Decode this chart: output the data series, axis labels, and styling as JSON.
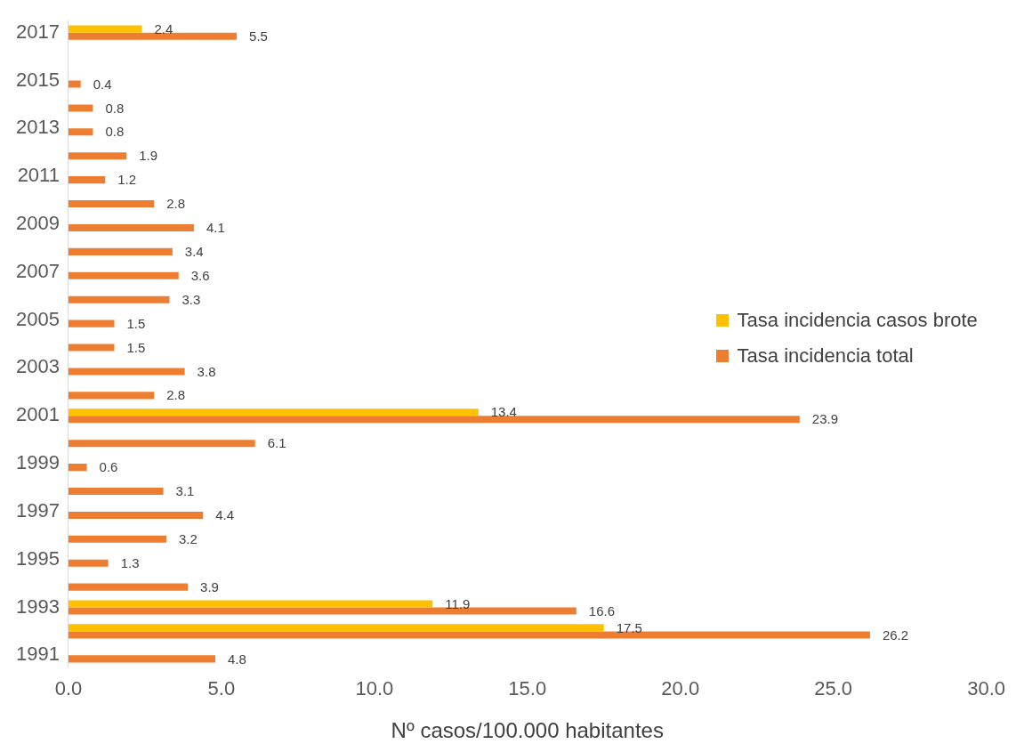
{
  "chart_data": {
    "type": "bar",
    "orientation": "horizontal",
    "xlabel": "Nº casos/100.000 habitantes",
    "categories": [
      "2017",
      null,
      "2015",
      null,
      "2013",
      null,
      "2011",
      null,
      "2009",
      null,
      "2007",
      null,
      "2005",
      null,
      "2003",
      null,
      "2001",
      null,
      "1999",
      null,
      "1997",
      null,
      "1995",
      null,
      "1993",
      null,
      "1991"
    ],
    "series": [
      {
        "name": "Tasa incidencia casos brote",
        "color": "#ffc000",
        "values": [
          2.4,
          null,
          null,
          null,
          null,
          null,
          null,
          null,
          null,
          null,
          null,
          null,
          null,
          null,
          null,
          null,
          13.4,
          null,
          null,
          null,
          null,
          null,
          null,
          null,
          11.9,
          17.5,
          null
        ]
      },
      {
        "name": "Tasa incidencia total",
        "color": "#ed7d31",
        "values": [
          5.5,
          null,
          0.4,
          0.8,
          0.8,
          1.9,
          1.2,
          2.8,
          4.1,
          3.4,
          3.6,
          3.3,
          1.5,
          1.5,
          3.8,
          2.8,
          23.9,
          6.1,
          0.6,
          3.1,
          4.4,
          3.2,
          1.3,
          3.9,
          16.6,
          26.2,
          4.8
        ]
      }
    ],
    "xlim": [
      0,
      30
    ],
    "xticks": [
      {
        "value": 0,
        "label": "0.0"
      },
      {
        "value": 5,
        "label": "5.0"
      },
      {
        "value": 10,
        "label": "10.0"
      },
      {
        "value": 15,
        "label": "15.0"
      },
      {
        "value": 20,
        "label": "20.0"
      },
      {
        "value": 25,
        "label": "25.0"
      },
      {
        "value": 30,
        "label": "30.0"
      }
    ],
    "grid": false,
    "legend": "right",
    "data_labels": true
  }
}
